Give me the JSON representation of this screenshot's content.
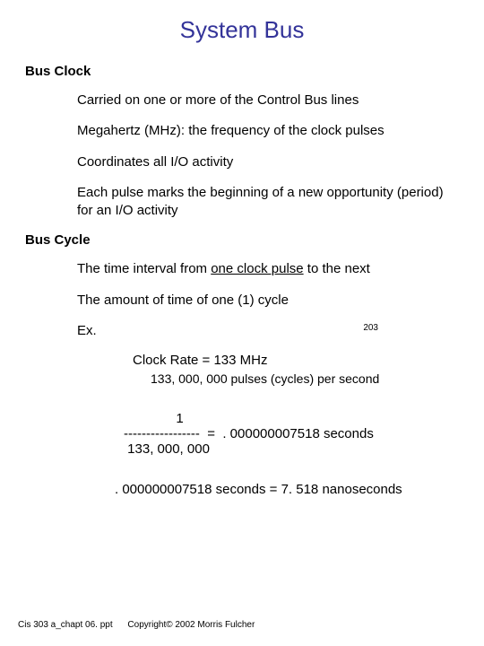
{
  "title": "System Bus",
  "section1": {
    "heading": "Bus Clock",
    "bullets": [
      "Carried on one or more of the Control Bus lines",
      "Megahertz (MHz): the frequency of the clock pulses",
      "Coordinates all I/O activity",
      "Each pulse marks the beginning of a new opportunity (period) for an I/O activity"
    ]
  },
  "section2": {
    "heading": "Bus Cycle",
    "bullet1_pre": "The time interval from ",
    "bullet1_underlined": "one clock pulse",
    "bullet1_post": " to the next",
    "bullet2": "The amount of time of one (1) cycle",
    "ex_label": "Ex.",
    "page_num": "203",
    "clock_rate": "Clock Rate = 133 MHz",
    "pulses": "133, 000, 000 pulses (cycles) per second",
    "frac_top": "              1",
    "frac_mid": "-----------------  =  . 000000007518 seconds",
    "frac_bot": " 133, 000, 000",
    "result": ". 000000007518 seconds = 7. 518 nanoseconds"
  },
  "footer": {
    "filename": "Cis 303 a_chapt 06. ppt",
    "copyright": "Copyright© 2002 Morris Fulcher"
  },
  "colors": {
    "title": "#333399",
    "text": "#000000",
    "background": "#ffffff"
  }
}
